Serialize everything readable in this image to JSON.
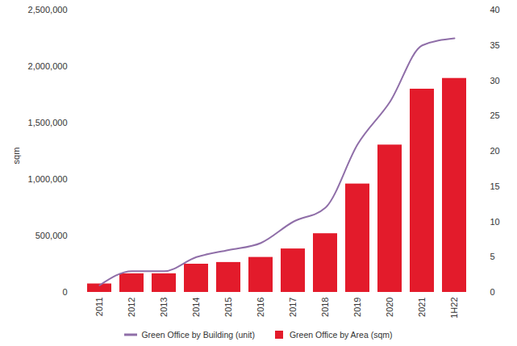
{
  "chart_data": {
    "type": "bar",
    "ylabel": "sqm",
    "categories": [
      "2011",
      "2012",
      "2013",
      "2014",
      "2015",
      "2016",
      "2017",
      "2018",
      "2019",
      "2020",
      "2021",
      "1H22"
    ],
    "series": [
      {
        "name": "Green Office by Building (unit)",
        "type": "line",
        "axis": "y2",
        "color": "#8f6ea8",
        "line_style": "solid",
        "values": [
          1,
          3,
          3,
          5,
          6,
          7,
          10,
          12,
          21,
          27,
          35,
          36
        ]
      },
      {
        "name": "Green Office by Area (sqm)",
        "type": "bar",
        "color": "#e31b2b",
        "values": [
          75000,
          165000,
          165000,
          250000,
          265000,
          310000,
          385000,
          520000,
          960000,
          1305000,
          1800000,
          1895000
        ]
      }
    ],
    "ylim": [
      0,
      2500000
    ],
    "yticks": [
      0,
      {
        "value": 500000,
        "label": "500,000"
      },
      {
        "value": 1000000,
        "label": "1,000,000"
      },
      {
        "value": 1500000,
        "label": "1,500,000"
      },
      {
        "value": 2000000,
        "label": "2,000,000"
      },
      {
        "value": 2500000,
        "label": "2,500,000"
      }
    ],
    "y2lim": [
      0,
      40
    ],
    "y2ticks": [
      0,
      5,
      10,
      15,
      20,
      25,
      30,
      35,
      40
    ],
    "grid": false,
    "legend": "bottom"
  }
}
